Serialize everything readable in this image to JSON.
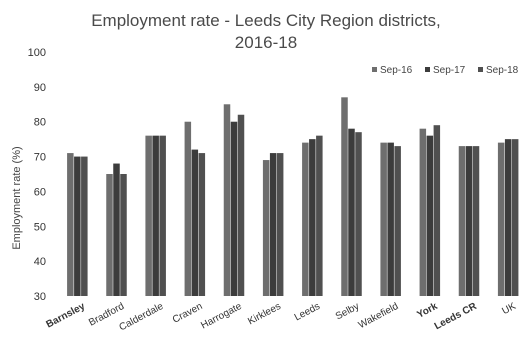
{
  "chart_data": {
    "type": "bar",
    "title_line1": "Employment rate - Leeds City Region districts,",
    "title_line2": "2016-18",
    "xlabel": "",
    "ylabel": "Employment rate (%)",
    "ylim": [
      30,
      100
    ],
    "yticks": [
      30,
      40,
      50,
      60,
      70,
      80,
      90,
      100
    ],
    "legend_position": "top-right",
    "grid": false,
    "categories": [
      "Barnsley",
      "Bradford",
      "Calderdale",
      "Craven",
      "Harrogate",
      "Kirklees",
      "Leeds",
      "Selby",
      "Wakefield",
      "York",
      "Leeds CR",
      "UK"
    ],
    "bold_categories": [
      "Barnsley",
      "York",
      "Leeds CR"
    ],
    "series": [
      {
        "name": "Sep-16",
        "values": [
          71,
          65,
          76,
          80,
          85,
          69,
          74,
          87,
          74,
          78,
          73,
          74
        ],
        "color": "#6e6e6e"
      },
      {
        "name": "Sep-17",
        "values": [
          70,
          68,
          76,
          72,
          80,
          71,
          75,
          78,
          74,
          76,
          73,
          75
        ],
        "color": "#3c3c3c"
      },
      {
        "name": "Sep-18",
        "values": [
          70,
          65,
          76,
          71,
          82,
          71,
          76,
          77,
          73,
          79,
          73,
          75
        ],
        "color": "#505050"
      }
    ]
  }
}
